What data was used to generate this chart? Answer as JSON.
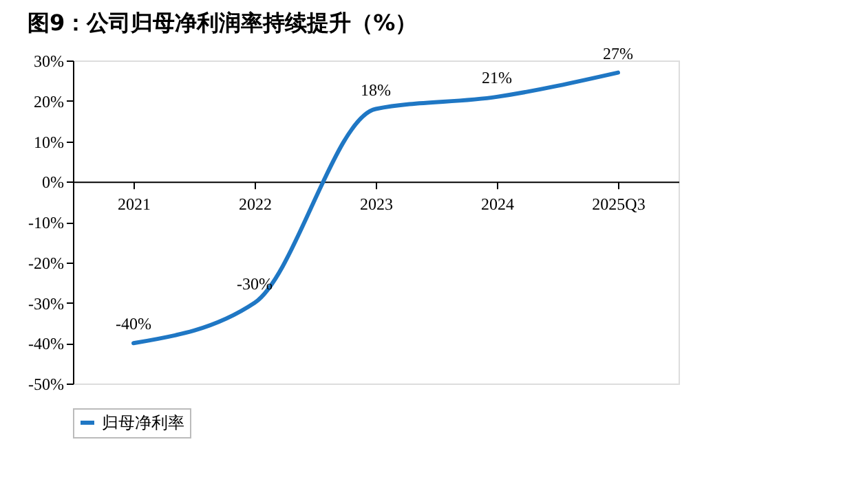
{
  "chart_data": {
    "type": "line",
    "title": "图9：公司归母净利润率持续提升（%）",
    "categories": [
      "2021",
      "2022",
      "2023",
      "2024",
      "2025Q3"
    ],
    "series": [
      {
        "name": "归母净利率",
        "color": "#1f77c4",
        "values": [
          -40,
          -30,
          18,
          21,
          27
        ],
        "value_labels": [
          "-40%",
          "-30%",
          "18%",
          "21%",
          "27%"
        ]
      }
    ],
    "ylim": [
      -50,
      30
    ],
    "yticks": [
      {
        "value": -50,
        "label": "-50%"
      },
      {
        "value": -40,
        "label": "-40%"
      },
      {
        "value": -30,
        "label": "-30%"
      },
      {
        "value": -20,
        "label": "-20%"
      },
      {
        "value": -10,
        "label": "-10%"
      },
      {
        "value": 0,
        "label": "0%"
      },
      {
        "value": 10,
        "label": "10%"
      },
      {
        "value": 20,
        "label": "20%"
      },
      {
        "value": 30,
        "label": "30%"
      }
    ],
    "legend": "bottom",
    "grid": false,
    "marker": "none",
    "line_style": "solid"
  }
}
